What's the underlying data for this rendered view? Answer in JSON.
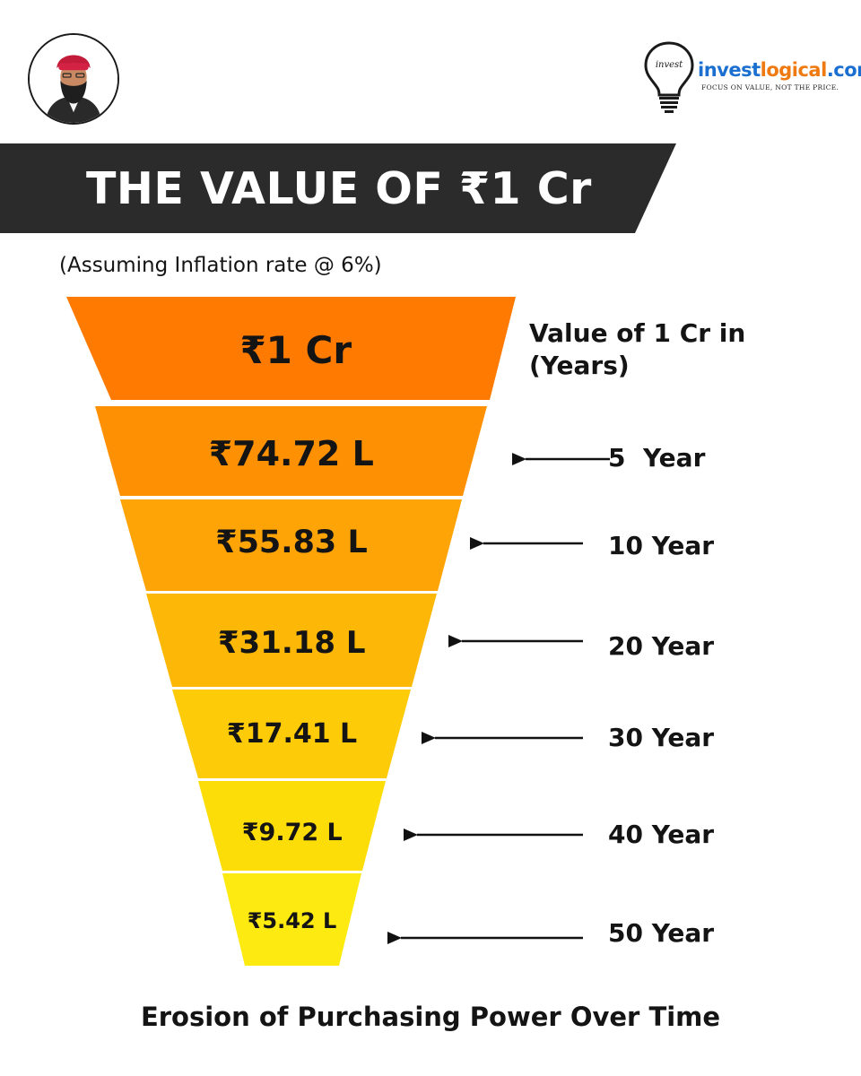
{
  "header": {
    "avatar_icon": "person-avatar",
    "logo": {
      "icon": "lightbulb-icon",
      "bulb_text": "invest",
      "brand_part1": "invest",
      "brand_part2": "logical",
      "brand_part3": ".com",
      "tagline": "FOCUS ON VALUE, NOT THE PRICE.",
      "colors": {
        "invest": "#1b6fd0",
        "logical": "#f07a12"
      }
    }
  },
  "banner": {
    "title": "THE VALUE OF ₹1 Cr",
    "color": "#2b2b2b"
  },
  "assumption": "(Assuming Inflation rate @ 6%)",
  "legend_heading_line1": "Value of 1 Cr in",
  "legend_heading_line2": "(Years)",
  "levels": [
    {
      "value": "₹1 Cr",
      "year": "",
      "color": "#fe7a00"
    },
    {
      "value": "₹74.72 L",
      "year": "5  Year",
      "color": "#fe9003"
    },
    {
      "value": "₹55.83 L",
      "year": "10 Year",
      "color": "#fea406"
    },
    {
      "value": "₹31.18 L",
      "year": "20 Year",
      "color": "#fdb807"
    },
    {
      "value": "₹17.41 L",
      "year": "30 Year",
      "color": "#fdcb08"
    },
    {
      "value": "₹9.72 L",
      "year": "40 Year",
      "color": "#fddd08"
    },
    {
      "value": "₹5.42 L",
      "year": "50 Year",
      "color": "#fdea10"
    }
  ],
  "footer": "Erosion of Purchasing Power Over Time"
}
